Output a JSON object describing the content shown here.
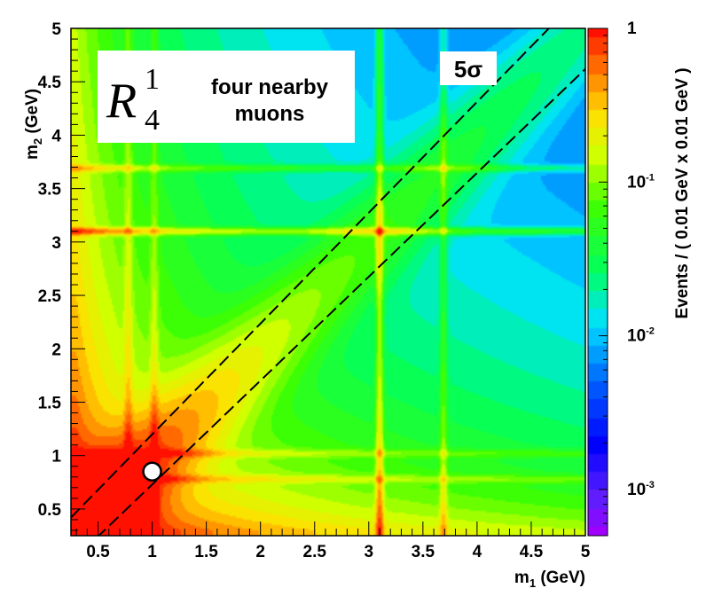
{
  "chart_data": {
    "type": "heatmap",
    "title": "",
    "xlabel": "m_1 (GeV)",
    "xlabel_main": "m",
    "xlabel_sub": "1",
    "xlabel_unit": " (GeV)",
    "ylabel": "m_2 (GeV)",
    "ylabel_main": "m",
    "ylabel_sub": "2",
    "ylabel_unit": " (GeV)",
    "xlim": [
      0.25,
      5
    ],
    "ylim": [
      0.25,
      5
    ],
    "x_ticks": [
      "0.5",
      "1",
      "1.5",
      "2",
      "2.5",
      "3",
      "3.5",
      "4",
      "4.5",
      "5"
    ],
    "y_ticks": [
      "0.5",
      "1",
      "1.5",
      "2",
      "2.5",
      "3",
      "3.5",
      "4",
      "4.5",
      "5"
    ],
    "zlabel": "Events / ( 0.01 GeV x 0.01 GeV )",
    "z_scale": "log",
    "zlim": [
      0.0005,
      1
    ],
    "z_ticks": [
      {
        "value": 1,
        "label": "1"
      },
      {
        "value": 0.1,
        "label": "10",
        "exp": "-1"
      },
      {
        "value": 0.01,
        "label": "10",
        "exp": "-2"
      },
      {
        "value": 0.001,
        "label": "10",
        "exp": "-3"
      }
    ],
    "resonance_lines_gev": [
      0.78,
      1.02,
      3.1,
      3.69
    ],
    "annotation_box": {
      "symbol_main": "R",
      "symbol_sup": "1",
      "symbol_sub": "4",
      "line1": "four nearby",
      "line2": "muons"
    },
    "significance_label": "5σ",
    "signal_band": {
      "style": "dashed",
      "lines": [
        {
          "x0": 0.25,
          "y0": 0.42,
          "x1": 5,
          "y1": 5.35
        },
        {
          "x0": 0.25,
          "y0": 0.0,
          "x1": 5,
          "y1": 4.62
        }
      ]
    },
    "marker_point": {
      "x": 1.0,
      "y": 0.85
    }
  }
}
